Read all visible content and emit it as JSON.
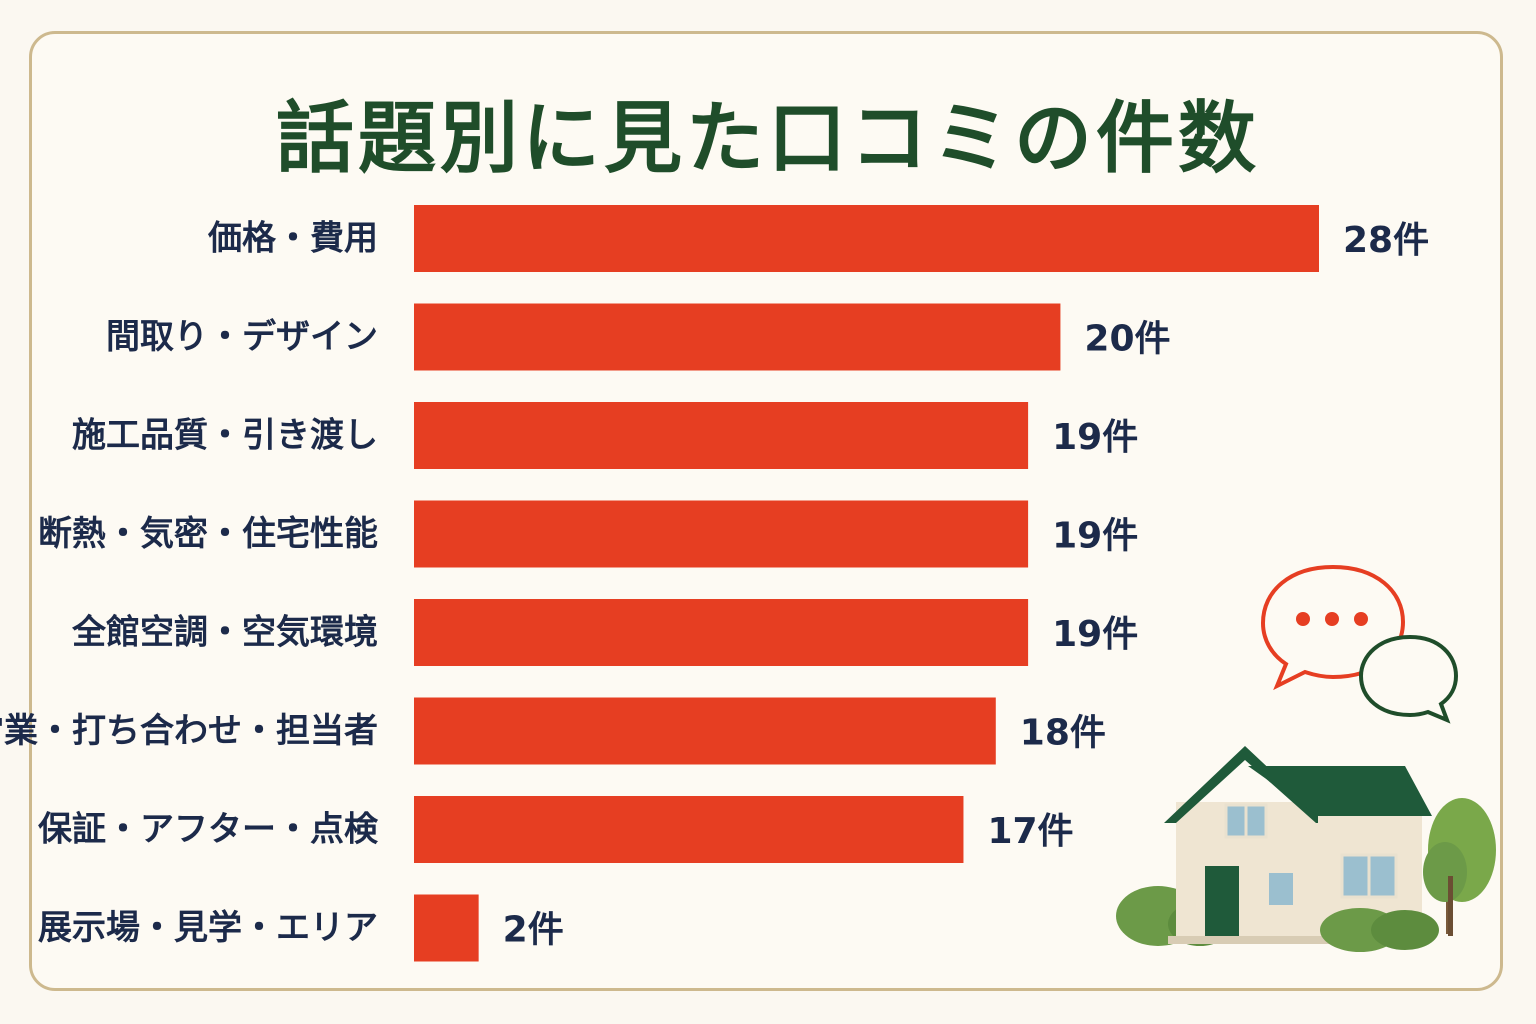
{
  "title": "話題別に見た口コミの件数",
  "chart_data": {
    "type": "bar",
    "orientation": "horizontal",
    "title": "話題別に見た口コミの件数",
    "categories": [
      "価格・費用",
      "間取り・デザイン",
      "施工品質・引き渡し",
      "断熱・気密・住宅性能",
      "全館空調・空気環境",
      "営業・打ち合わせ・担当者",
      "保証・アフター・点検",
      "展示場・見学・エリア"
    ],
    "values": [
      28,
      20,
      19,
      19,
      19,
      18,
      17,
      2
    ],
    "value_labels": [
      "28件",
      "20件",
      "19件",
      "19件",
      "19件",
      "18件",
      "17件",
      "2件"
    ],
    "unit": "件",
    "xlim": [
      0,
      28
    ],
    "grid": false,
    "legend": "none"
  },
  "colors": {
    "bar": "#e63e22",
    "title": "#1f4d2a",
    "label": "#1c2a4a",
    "frame": "#cdb98e",
    "background": "#fdfaf3"
  },
  "icons": [
    "speech-bubble-icon",
    "house-icon",
    "tree-icon"
  ]
}
